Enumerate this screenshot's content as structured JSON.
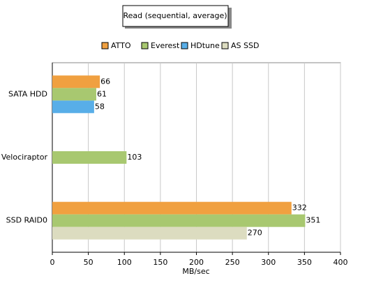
{
  "chart_data": {
    "type": "bar",
    "orientation": "horizontal",
    "title": "Read (sequential, average)",
    "x_label": "MB/sec",
    "categories": [
      "SATA HDD",
      "Velociraptor",
      "SSD RAID0"
    ],
    "series": [
      {
        "name": "ATTO",
        "color": "#f0a040",
        "values": [
          66,
          null,
          332
        ]
      },
      {
        "name": "Everest",
        "color": "#a8c870",
        "values": [
          61,
          103,
          351
        ]
      },
      {
        "name": "HDtune",
        "color": "#58aee8",
        "values": [
          58,
          null,
          null
        ]
      },
      {
        "name": "AS SSD",
        "color": "#dcdcc0",
        "values": [
          null,
          null,
          270
        ]
      }
    ],
    "xlim": [
      0,
      400
    ],
    "xticks": [
      0,
      50,
      100,
      150,
      200,
      250,
      300,
      350,
      400
    ],
    "grid": true,
    "legend": "top"
  }
}
